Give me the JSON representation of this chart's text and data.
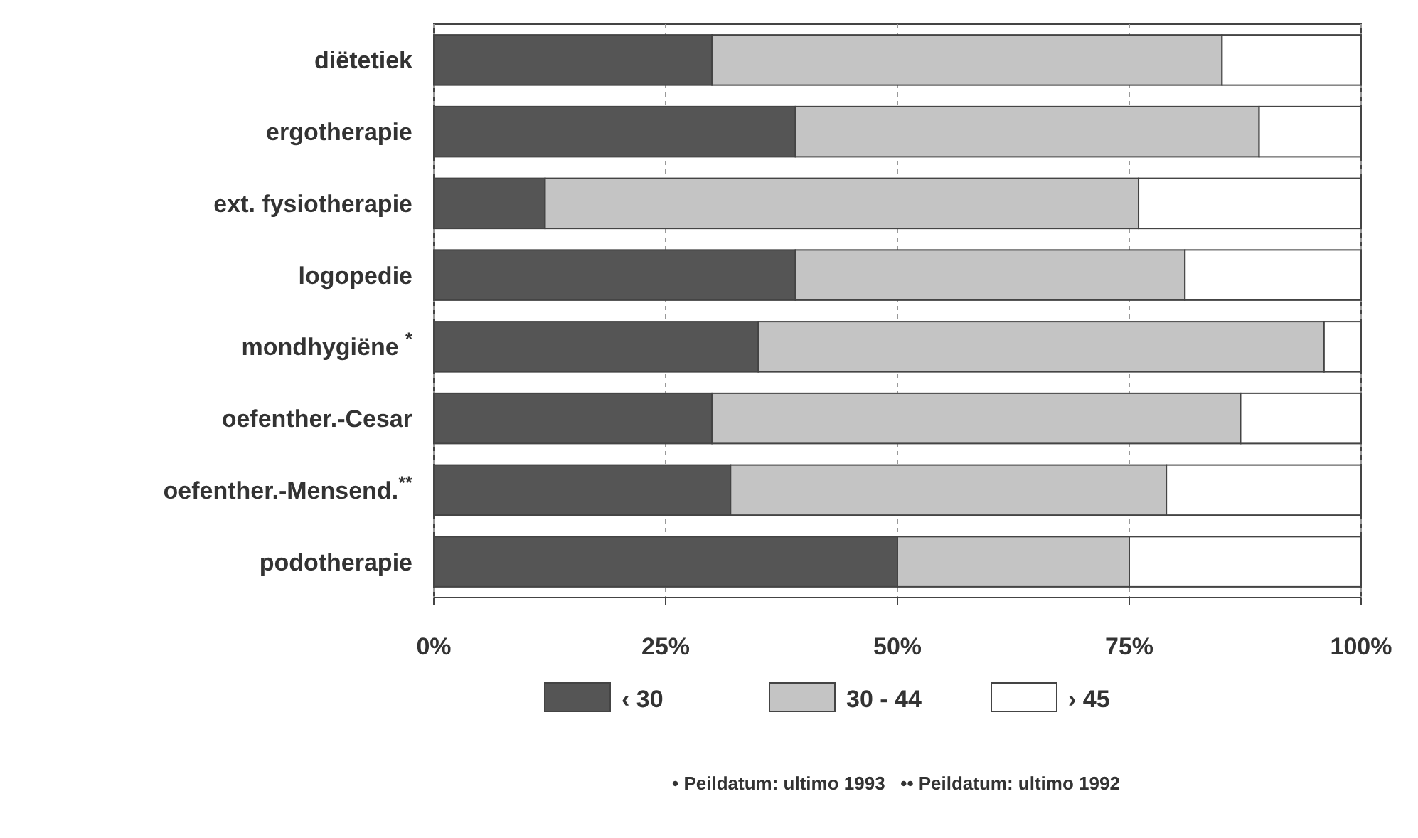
{
  "chart_data": {
    "type": "bar",
    "orientation": "horizontal",
    "stacked": true,
    "categories": [
      "diëtetiek",
      "ergotherapie",
      "ext. fysiotherapie",
      "logopedie",
      "mondhygiëne $^{*}$",
      "oefenther.-Cesar",
      "oefenther.-Mensend.$^{**}$",
      "podotherapie"
    ],
    "series": [
      {
        "name": "‹ 30",
        "color": "#555555",
        "values": [
          30,
          39,
          12,
          39,
          35,
          30,
          32,
          50
        ]
      },
      {
        "name": "30 - 44",
        "color": "#c4c4c4",
        "values": [
          55,
          50,
          64,
          42,
          61,
          57,
          47,
          25
        ]
      },
      {
        "name": "› 45",
        "color": "#ffffff",
        "values": [
          15,
          11,
          24,
          19,
          4,
          13,
          21,
          25
        ]
      }
    ],
    "xlim": [
      0,
      100
    ],
    "xticks": [
      {
        "value": 0,
        "label": "0%"
      },
      {
        "value": 25,
        "label": "25%"
      },
      {
        "value": 50,
        "label": "50%"
      },
      {
        "value": 75,
        "label": "75%"
      },
      {
        "value": 100,
        "label": "100%"
      }
    ],
    "grid": "x",
    "legend": "bottom",
    "annotations": [
      "• Peildatum: ultimo 1993   •• Peildatum: ultimo 1992"
    ]
  }
}
